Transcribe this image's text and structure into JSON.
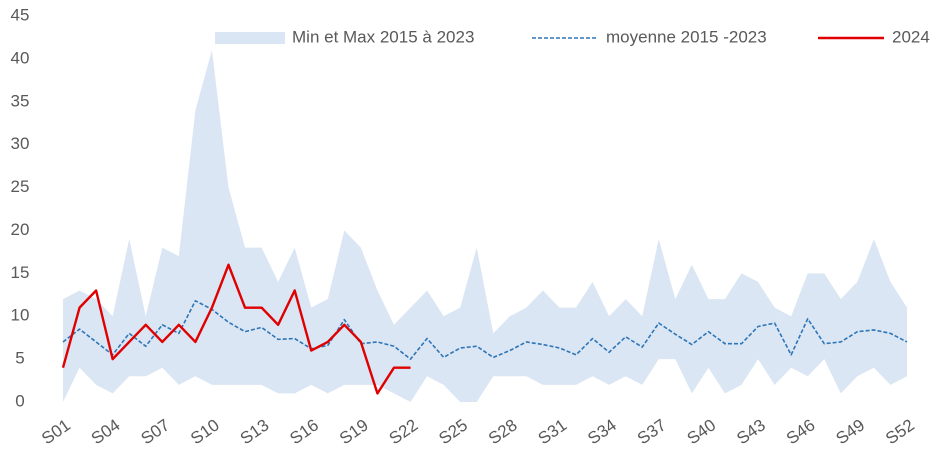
{
  "chart_data": {
    "type": "line",
    "categories": [
      "S01",
      null,
      null,
      "S04",
      null,
      null,
      "S07",
      null,
      null,
      "S10",
      null,
      null,
      "S13",
      null,
      null,
      "S16",
      null,
      null,
      "S19",
      null,
      null,
      "S22",
      null,
      null,
      "S25",
      null,
      null,
      "S28",
      null,
      null,
      "S31",
      null,
      null,
      "S34",
      null,
      null,
      "S37",
      null,
      null,
      "S40",
      null,
      null,
      "S43",
      null,
      null,
      "S46",
      null,
      null,
      "S49",
      null,
      null,
      "S52"
    ],
    "series": [
      {
        "name": "Min et Max 2015 à 2023",
        "type": "band",
        "color": "#dae6f4",
        "low": [
          0,
          4,
          2,
          1,
          3,
          3,
          4,
          2,
          3,
          2,
          2,
          2,
          2,
          1,
          1,
          2,
          1,
          2,
          2,
          2,
          1,
          0,
          3,
          2,
          0,
          0,
          3,
          3,
          3,
          2,
          2,
          2,
          3,
          2,
          3,
          2,
          5,
          5,
          1,
          4,
          1,
          2,
          5,
          2,
          4,
          3,
          5,
          1,
          3,
          4,
          2,
          3
        ],
        "high": [
          12,
          13,
          12,
          10,
          19,
          10,
          18,
          17,
          34,
          41,
          25,
          18,
          18,
          14,
          18,
          11,
          12,
          20,
          18,
          13,
          9,
          11,
          13,
          10,
          11,
          18,
          8,
          10,
          11,
          13,
          11,
          11,
          14,
          10,
          12,
          10,
          19,
          12,
          16,
          12,
          12,
          15,
          14,
          11,
          10,
          15,
          15,
          12,
          14,
          19,
          14,
          11
        ]
      },
      {
        "name": "moyenne 2015 -2023",
        "type": "dashed",
        "color": "#2e75b6",
        "values": [
          7,
          8.5,
          7,
          5.5,
          8,
          6.5,
          9,
          8,
          11.8,
          10.8,
          9.3,
          8.2,
          8.7,
          7.3,
          7.4,
          6.2,
          6.6,
          9.6,
          6.8,
          7,
          6.5,
          5,
          7.4,
          5.2,
          6.3,
          6.5,
          5.2,
          6,
          7,
          6.7,
          6.3,
          5.5,
          7.4,
          5.8,
          7.6,
          6.4,
          9.2,
          7.9,
          6.7,
          8.2,
          6.8,
          6.8,
          8.8,
          9.2,
          5.5,
          9.7,
          6.8,
          7,
          8.2,
          8.4,
          8,
          7
        ]
      },
      {
        "name": "2024",
        "type": "solid",
        "color": "#e00000",
        "values": [
          4,
          11,
          13,
          5,
          7,
          9,
          7,
          9,
          7,
          11,
          16,
          11,
          11,
          9,
          13,
          6,
          7,
          9,
          7,
          1,
          4,
          4,
          null,
          null,
          null,
          null,
          null,
          null,
          null,
          null,
          null,
          null,
          null,
          null,
          null,
          null,
          null,
          null,
          null,
          null,
          null,
          null,
          null,
          null,
          null,
          null,
          null,
          null,
          null,
          null,
          null,
          null
        ]
      }
    ],
    "ylim": [
      0,
      45
    ],
    "yticks": [
      0,
      5,
      10,
      15,
      20,
      25,
      30,
      35,
      40,
      45
    ],
    "grid": false
  }
}
